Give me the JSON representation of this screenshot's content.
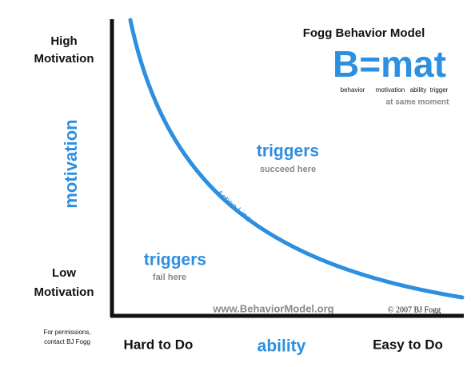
{
  "header": {
    "title": "Fogg Behavior Model",
    "formula": "B=mat",
    "formula_terms": [
      "behavior",
      "motivation",
      "ability",
      "trigger"
    ],
    "formula_note": "at same moment"
  },
  "y_axis": {
    "high": [
      "High",
      "Motivation"
    ],
    "low": [
      "Low",
      "Motivation"
    ],
    "label": "motivation"
  },
  "x_axis": {
    "left": "Hard to Do",
    "label": "ability",
    "right": "Easy to Do"
  },
  "curve": {
    "label": "Action Line"
  },
  "regions": {
    "above": {
      "title": "triggers",
      "note": "succeed here"
    },
    "below": {
      "title": "triggers",
      "note": "fail here"
    }
  },
  "footer": {
    "url": "www.BehaviorModel.org",
    "copyright": "© 2007 BJ Fogg",
    "permissions": [
      "For permissions,",
      "contact BJ Fogg"
    ]
  }
}
